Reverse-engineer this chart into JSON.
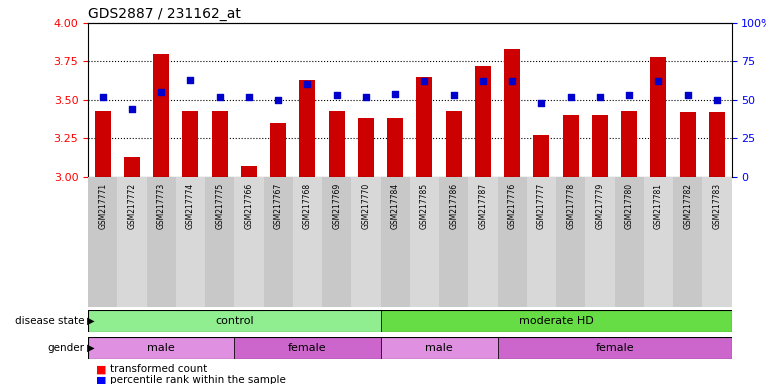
{
  "title": "GDS2887 / 231162_at",
  "samples": [
    "GSM217771",
    "GSM217772",
    "GSM217773",
    "GSM217774",
    "GSM217775",
    "GSM217766",
    "GSM217767",
    "GSM217768",
    "GSM217769",
    "GSM217770",
    "GSM217784",
    "GSM217785",
    "GSM217786",
    "GSM217787",
    "GSM217776",
    "GSM217777",
    "GSM217778",
    "GSM217779",
    "GSM217780",
    "GSM217781",
    "GSM217782",
    "GSM217783"
  ],
  "bar_values": [
    3.43,
    3.13,
    3.8,
    3.43,
    3.43,
    3.07,
    3.35,
    3.63,
    3.43,
    3.38,
    3.38,
    3.65,
    3.43,
    3.72,
    3.83,
    3.27,
    3.4,
    3.4,
    3.43,
    3.78,
    3.42,
    3.42
  ],
  "percentile_values": [
    3.52,
    3.44,
    3.55,
    3.63,
    3.52,
    3.52,
    3.5,
    3.6,
    3.53,
    3.52,
    3.54,
    3.62,
    3.53,
    3.62,
    3.62,
    3.48,
    3.52,
    3.52,
    3.53,
    3.62,
    3.53,
    3.5
  ],
  "ylim_left": [
    3.0,
    4.0
  ],
  "ylim_right": [
    0,
    100
  ],
  "yticks_left": [
    3.0,
    3.25,
    3.5,
    3.75,
    4.0
  ],
  "yticks_right": [
    0,
    25,
    50,
    75,
    100
  ],
  "bar_color": "#cc0000",
  "marker_color": "#0000cc",
  "disease_state_groups": [
    {
      "label": "control",
      "start": 0,
      "end": 9,
      "color": "#90ee90"
    },
    {
      "label": "moderate HD",
      "start": 10,
      "end": 21,
      "color": "#66dd44"
    }
  ],
  "gender_groups": [
    {
      "label": "male",
      "start": 0,
      "end": 4
    },
    {
      "label": "female",
      "start": 5,
      "end": 9
    },
    {
      "label": "male",
      "start": 10,
      "end": 13
    },
    {
      "label": "female",
      "start": 14,
      "end": 21
    }
  ],
  "gender_colors": [
    "#e090e0",
    "#cc66cc",
    "#e090e0",
    "#cc66cc"
  ],
  "background_color": "#ffffff"
}
